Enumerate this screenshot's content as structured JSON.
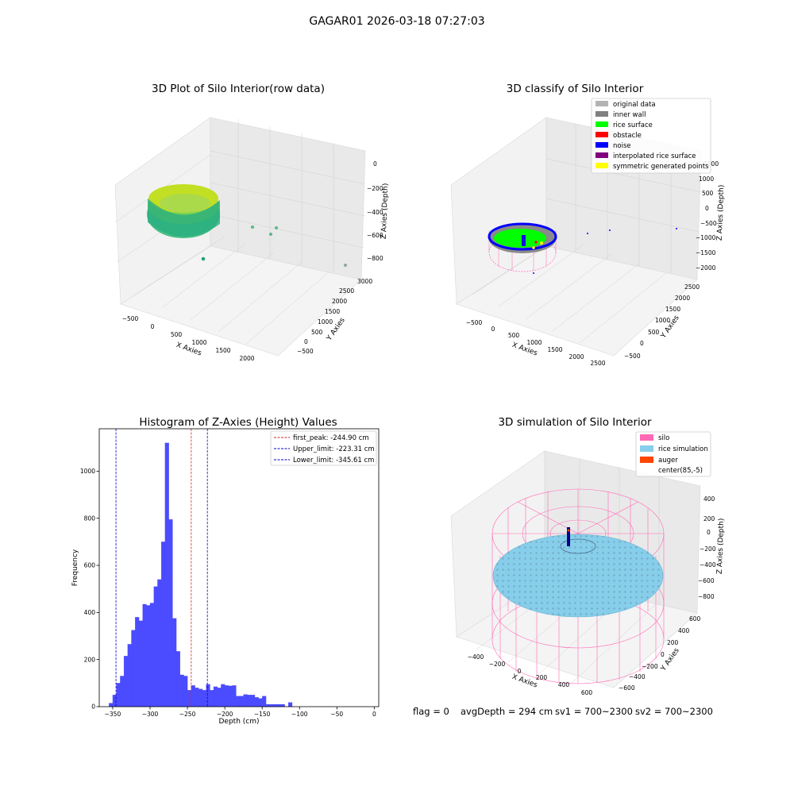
{
  "figure": {
    "suptitle": "GAGAR01 2026-03-18 07:27:03",
    "status": {
      "flag": "flag = 0",
      "avg_depth": "avgDepth = 294 cm",
      "sv1": "sv1 = 700~2300",
      "sv2": "sv2 = 700~2300"
    }
  },
  "colors": {
    "hist_bar": "#4b4bff",
    "peak_line": "#d62728",
    "limit_line": "#0000cc",
    "silo": "#ff69b4",
    "rice": "#87ceeb",
    "auger": "#ff4500",
    "inner_wall": "#808080",
    "rice_surface": "#00ff00",
    "obstacle": "#ff0000",
    "noise": "#0000ff",
    "interpolated": "#800080",
    "symmetric": "#ffff00",
    "original": "#b3b3b3"
  },
  "chart_data": [
    {
      "id": "raw",
      "type": "scatter",
      "title": "3D Plot of Silo Interior(row data)",
      "xlabel": "X Axies",
      "ylabel": "Y Axies",
      "zlabel": "Z Axies (Depth)",
      "xticks": [
        "−500",
        "0",
        "500",
        "1000",
        "1500",
        "2000"
      ],
      "yticks": [
        "−500",
        "0",
        "500",
        "1000",
        "1500",
        "2000",
        "2500",
        "3000"
      ],
      "zticks": [
        "0",
        "−200",
        "−400",
        "−600",
        "−800"
      ],
      "xlim": [
        -700,
        2300
      ],
      "ylim": [
        -700,
        3100
      ],
      "zlim": [
        -950,
        50
      ]
    },
    {
      "id": "classify",
      "type": "scatter",
      "title": "3D classify of Silo Interior",
      "xlabel": "X Axies",
      "ylabel": "Y Axies",
      "zlabel": "Z Axies (Depth)",
      "xticks": [
        "−500",
        "0",
        "500",
        "1000",
        "1500",
        "2000",
        "2500"
      ],
      "yticks": [
        "−500",
        "0",
        "500",
        "1000",
        "1500",
        "2000",
        "2500"
      ],
      "zticks": [
        "1000",
        "500",
        "0",
        "−500",
        "−1000",
        "−1500",
        "−2000"
      ],
      "zticks_extra": "1500",
      "legend": [
        "original data",
        "inner wall",
        "rice surface",
        "obstacle",
        "noise",
        "interpolated rice surface",
        "symmetric generated points"
      ]
    },
    {
      "id": "hist",
      "type": "bar",
      "title": "Histogram of Z-Axies (Height) Values",
      "xlabel": "Depth (cm)",
      "ylabel": "Frequency",
      "xlim": [
        -368,
        6
      ],
      "ylim": [
        0,
        1180
      ],
      "xticks": [
        -350,
        -300,
        -250,
        -200,
        -150,
        -100,
        -50,
        0
      ],
      "xtick_labels": [
        "−350",
        "−300",
        "−250",
        "−200",
        "−150",
        "−100",
        "−50",
        "0"
      ],
      "yticks": [
        0,
        200,
        400,
        600,
        800,
        1000
      ],
      "yticks_labels": [
        "0",
        "200",
        "400",
        "600",
        "800",
        "1000"
      ],
      "bin_start": -355,
      "bin_width": 5,
      "values": [
        15,
        50,
        100,
        130,
        215,
        265,
        325,
        380,
        365,
        435,
        430,
        440,
        510,
        540,
        700,
        1120,
        795,
        375,
        235,
        135,
        130,
        70,
        90,
        80,
        75,
        70,
        95,
        70,
        85,
        80,
        95,
        90,
        88,
        90,
        45,
        45,
        52,
        50,
        50,
        40,
        35,
        45,
        10,
        10,
        10,
        10,
        10,
        0,
        18
      ],
      "lines": [
        {
          "x": -244.9,
          "kind": "peak",
          "label": "first_peak: -244.90 cm"
        },
        {
          "x": -223.31,
          "kind": "limit",
          "label": "Upper_limit: -223.31 cm"
        },
        {
          "x": -345.61,
          "kind": "limit",
          "label": "Lower_limit: -345.61 cm"
        }
      ]
    },
    {
      "id": "sim",
      "type": "scatter",
      "title": "3D simulation of Silo Interior",
      "xlabel": "X Axies",
      "ylabel": "Y Axies",
      "zlabel": "Z Axies (Depth)",
      "xticks": [
        "−400",
        "−200",
        "0",
        "200",
        "400",
        "600"
      ],
      "yticks": [
        "−600",
        "−400",
        "−200",
        "0",
        "200",
        "400",
        "600"
      ],
      "zticks": [
        "400",
        "200",
        "0",
        "−200",
        "−400",
        "−600",
        "−800"
      ],
      "legend": [
        "silo",
        "rice simulation",
        "auger",
        "center(85,-5)"
      ]
    }
  ]
}
